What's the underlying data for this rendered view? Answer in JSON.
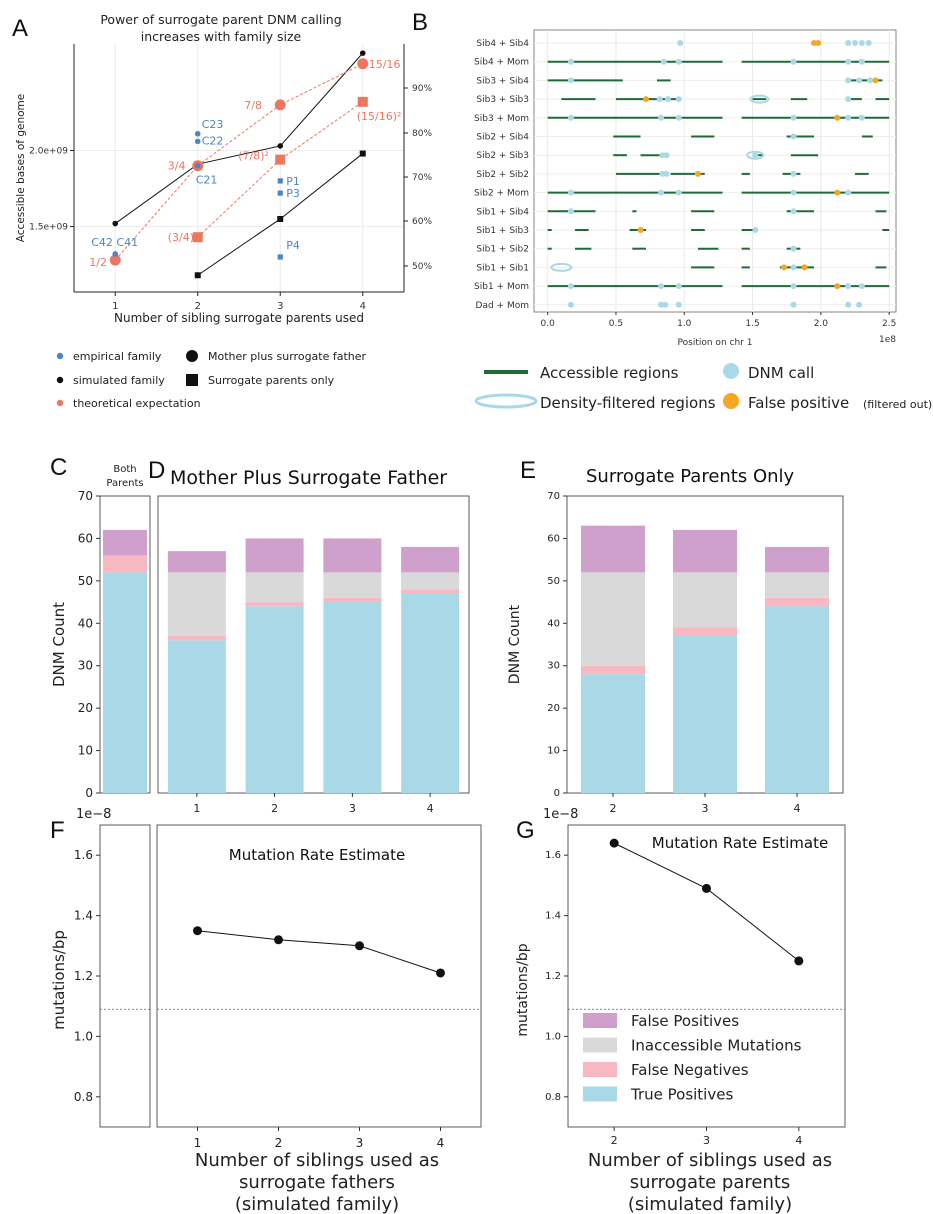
{
  "panels": {
    "A": "A",
    "B": "B",
    "C": "C",
    "D": "D",
    "E": "E",
    "F": "F",
    "G": "G"
  },
  "colors": {
    "empirical": "#4a86c5",
    "simulated": "#111111",
    "theoretical": "#ec7660",
    "accessible": "#1e6b36",
    "dnm": "#a9d9e6",
    "false_pos_dot": "#f5a623",
    "fp": "#cfa0cc",
    "inacc": "#d9d9d9",
    "fn": "#f7b8c2",
    "tp": "#a9d9e6",
    "dashed": "#4e5aa8"
  },
  "chart_data": [
    {
      "panel": "A",
      "type": "scatter",
      "title": "Power of surrogate parent DNM calling\nincreases with family size",
      "xlabel": "Number of sibling surrogate parents used",
      "ylabel": "Accessible bases of genome",
      "x_ticks": [
        "1",
        "2",
        "3",
        "4"
      ],
      "y_ticks": [
        "1.5e+09",
        "2.0e+09"
      ],
      "y2_ticks": [
        "50%",
        "60%",
        "70%",
        "80%",
        "90%"
      ],
      "ylim": [
        1070000000.0,
        2700000000.0
      ],
      "xlim": [
        0.5,
        4.5
      ],
      "series": [
        {
          "name": "simulated family",
          "marker": "circle",
          "x": [
            1,
            2,
            3,
            4
          ],
          "y": [
            1520000000.0,
            1910000000.0,
            2030000000.0,
            2640000000.0
          ]
        },
        {
          "name": "simulated family",
          "marker": "square",
          "x": [
            2,
            3,
            4
          ],
          "y": [
            1180000000.0,
            1550000000.0,
            1980000000.0
          ]
        },
        {
          "name": "theoretical expectation",
          "marker": "circle",
          "x": [
            1,
            2,
            3,
            4
          ],
          "y": [
            1280000000.0,
            1900000000.0,
            2300000000.0,
            2570000000.0
          ],
          "labels": [
            "1/2",
            "3/4",
            "7/8",
            "15/16"
          ]
        },
        {
          "name": "theoretical expectation",
          "marker": "square",
          "x": [
            2,
            3,
            4
          ],
          "y": [
            1430000000.0,
            1940000000.0,
            2320000000.0
          ],
          "labels": [
            "(3/4)²",
            "(7/8)²",
            "(15/16)²"
          ]
        },
        {
          "name": "empirical family",
          "marker": "circle",
          "x": [
            1,
            2,
            2,
            2
          ],
          "y": [
            1320000000.0,
            2110000000.0,
            2060000000.0,
            1900000000.0
          ],
          "labels": [
            "C42 C41",
            "C23",
            "C22",
            "C21"
          ]
        },
        {
          "name": "empirical family",
          "marker": "square",
          "x": [
            3,
            3,
            3
          ],
          "y": [
            1800000000.0,
            1720000000.0,
            1300000000.0
          ],
          "labels": [
            "P1",
            "P3",
            "P4"
          ]
        }
      ],
      "legend": [
        {
          "label": "empirical family",
          "kind": "dot-blue"
        },
        {
          "label": "Mother plus surrogate father",
          "kind": "big-circle"
        },
        {
          "label": "simulated family",
          "kind": "dot-black"
        },
        {
          "label": "Surrogate parents only",
          "kind": "big-square"
        },
        {
          "label": "theoretical expectation",
          "kind": "dot-red"
        }
      ]
    },
    {
      "panel": "B",
      "type": "scatter",
      "xlabel": "Position on chr 1",
      "x_exponent": "1e8",
      "x_ticks": [
        "0.0",
        "0.5",
        "1.0",
        "1.5",
        "2.0",
        "2.5"
      ],
      "xlim": [
        -0.1,
        2.55
      ],
      "rows": [
        "Sib4 + Sib4",
        "Sib4 + Mom",
        "Sib3 + Sib4",
        "Sib3 + Sib3",
        "Sib3 + Mom",
        "Sib2 + Sib4",
        "Sib2 + Sib3",
        "Sib2 + Sib2",
        "Sib2 + Mom",
        "Sib1 + Sib4",
        "Sib1 + Sib3",
        "Sib1 + Sib2",
        "Sib1 + Sib1",
        "Sib1 + Mom",
        "Dad + Mom"
      ],
      "legend": [
        {
          "label": "Accessible regions",
          "kind": "line"
        },
        {
          "label": "DNM call",
          "kind": "dot-light"
        },
        {
          "label": "Density-filtered regions",
          "kind": "ellipse"
        },
        {
          "label": "False positive",
          "sub": "(filtered out)",
          "kind": "dot-orange"
        }
      ]
    },
    {
      "panel": "C",
      "type": "bar",
      "title": "Both\nParents",
      "ylabel": "DNM Count",
      "y_ticks": [
        "0",
        "10",
        "20",
        "30",
        "40",
        "50",
        "60",
        "70"
      ],
      "ylim": [
        0,
        70
      ],
      "categories": [
        ""
      ],
      "stack": [
        {
          "name": "True Positives",
          "values": [
            52
          ]
        },
        {
          "name": "False Negatives",
          "values": [
            4
          ]
        },
        {
          "name": "Inaccessible Mutations",
          "values": [
            0
          ]
        },
        {
          "name": "False Positives",
          "values": [
            6
          ]
        }
      ]
    },
    {
      "panel": "D",
      "type": "bar",
      "title": "Mother Plus Surrogate Father",
      "ylim": [
        0,
        70
      ],
      "categories": [
        "1",
        "2",
        "3",
        "4"
      ],
      "stack": [
        {
          "name": "True Positives",
          "values": [
            36,
            44,
            45,
            47
          ]
        },
        {
          "name": "False Negatives",
          "values": [
            1,
            1,
            1,
            1
          ]
        },
        {
          "name": "Inaccessible Mutations",
          "values": [
            15,
            7,
            6,
            4
          ]
        },
        {
          "name": "False Positives",
          "values": [
            5,
            8,
            8,
            6
          ]
        }
      ]
    },
    {
      "panel": "E",
      "type": "bar",
      "title": "Surrogate Parents Only",
      "ylabel": "DNM Count",
      "y_ticks": [
        "0",
        "10",
        "20",
        "30",
        "40",
        "50",
        "60",
        "70"
      ],
      "ylim": [
        0,
        70
      ],
      "categories": [
        "2",
        "3",
        "4"
      ],
      "stack": [
        {
          "name": "True Positives",
          "values": [
            28,
            37,
            44
          ]
        },
        {
          "name": "False Negatives",
          "values": [
            2,
            2,
            2
          ]
        },
        {
          "name": "Inaccessible Mutations",
          "values": [
            22,
            13,
            6
          ]
        },
        {
          "name": "False Positives",
          "values": [
            11,
            10,
            6
          ]
        }
      ]
    },
    {
      "panel": "F",
      "type": "line",
      "title": "Mutation Rate Estimate",
      "ylabel": "mutations/bp",
      "y_exponent": "1e−8",
      "y_ticks": [
        "0.8",
        "1.0",
        "1.2",
        "1.4",
        "1.6"
      ],
      "ylim": [
        0.7,
        1.7
      ],
      "x": [
        1,
        2,
        3,
        4
      ],
      "x_ticks": [
        "1",
        "2",
        "3",
        "4"
      ],
      "values": [
        1.35,
        1.32,
        1.3,
        1.21
      ],
      "reference": 1.09,
      "xlabel": "Number of siblings used as\nsurrogate fathers\n(simulated family)"
    },
    {
      "panel": "G",
      "type": "line",
      "title": "Mutation Rate Estimate",
      "ylabel": "mutations/bp",
      "y_exponent": "1e−8",
      "y_ticks": [
        "0.8",
        "1.0",
        "1.2",
        "1.4",
        "1.6"
      ],
      "ylim": [
        0.7,
        1.7
      ],
      "x": [
        2,
        3,
        4
      ],
      "x_ticks": [
        "2",
        "3",
        "4"
      ],
      "values": [
        1.64,
        1.49,
        1.25
      ],
      "reference": 1.09,
      "xlabel": "Number of siblings used as\nsurrogate parents\n(simulated family)",
      "legend": [
        "False Positives",
        "Inaccessible Mutations",
        "False Negatives",
        "True Positives"
      ]
    }
  ]
}
